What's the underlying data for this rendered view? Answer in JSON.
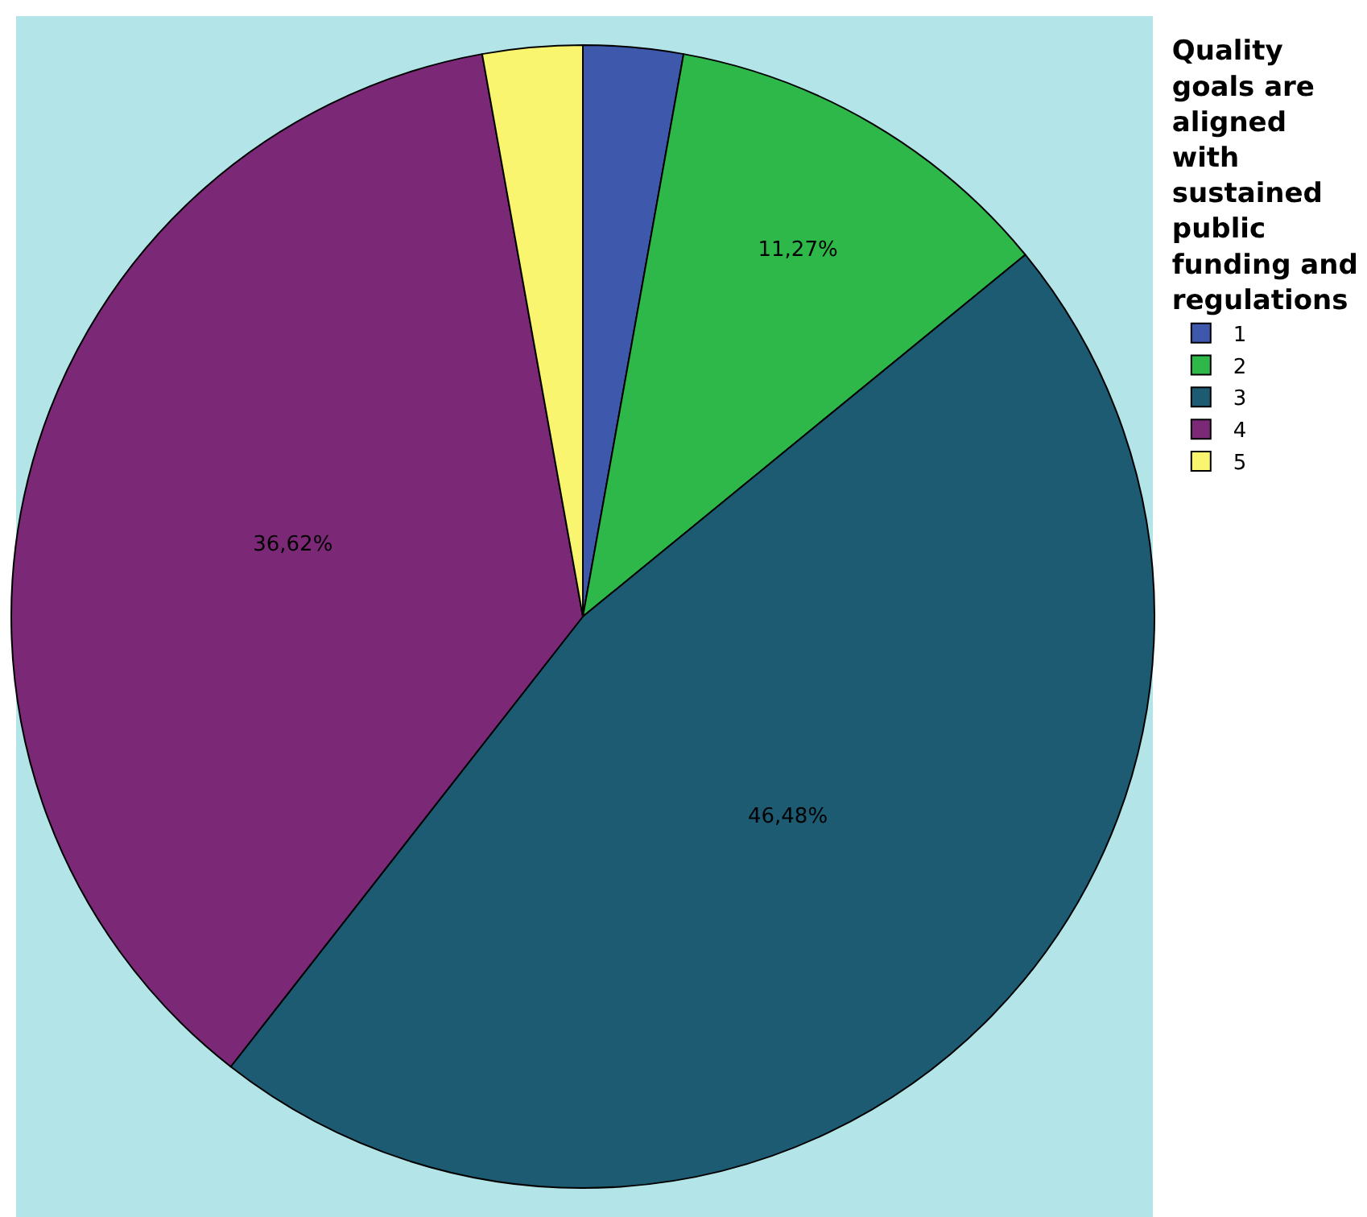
{
  "chart_data": {
    "type": "pie",
    "legend_title": "Quality goals are aligned with sustained public funding and regulations",
    "categories": [
      "1",
      "2",
      "3",
      "4",
      "5"
    ],
    "values": [
      2.82,
      11.27,
      46.48,
      36.62,
      2.82
    ],
    "colors": [
      "#3e58ac",
      "#2fb84a",
      "#1d5b73",
      "#7b2876",
      "#f9f56f"
    ],
    "value_labels": [
      null,
      "11,27%",
      "46,48%",
      "36,62%",
      null
    ],
    "legend": "top right"
  }
}
